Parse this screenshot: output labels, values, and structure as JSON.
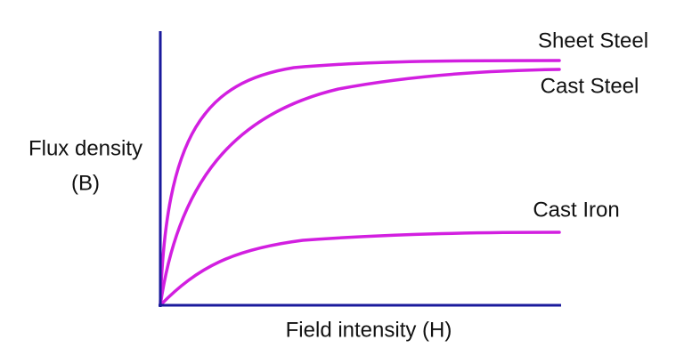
{
  "axes": {
    "y_label": [
      "Flux density",
      "(B)"
    ],
    "x_label": "Field intensity (H)"
  },
  "curves": [
    {
      "label": "Sheet Steel"
    },
    {
      "label": "Cast Steel"
    },
    {
      "label": "Cast Iron"
    }
  ]
}
